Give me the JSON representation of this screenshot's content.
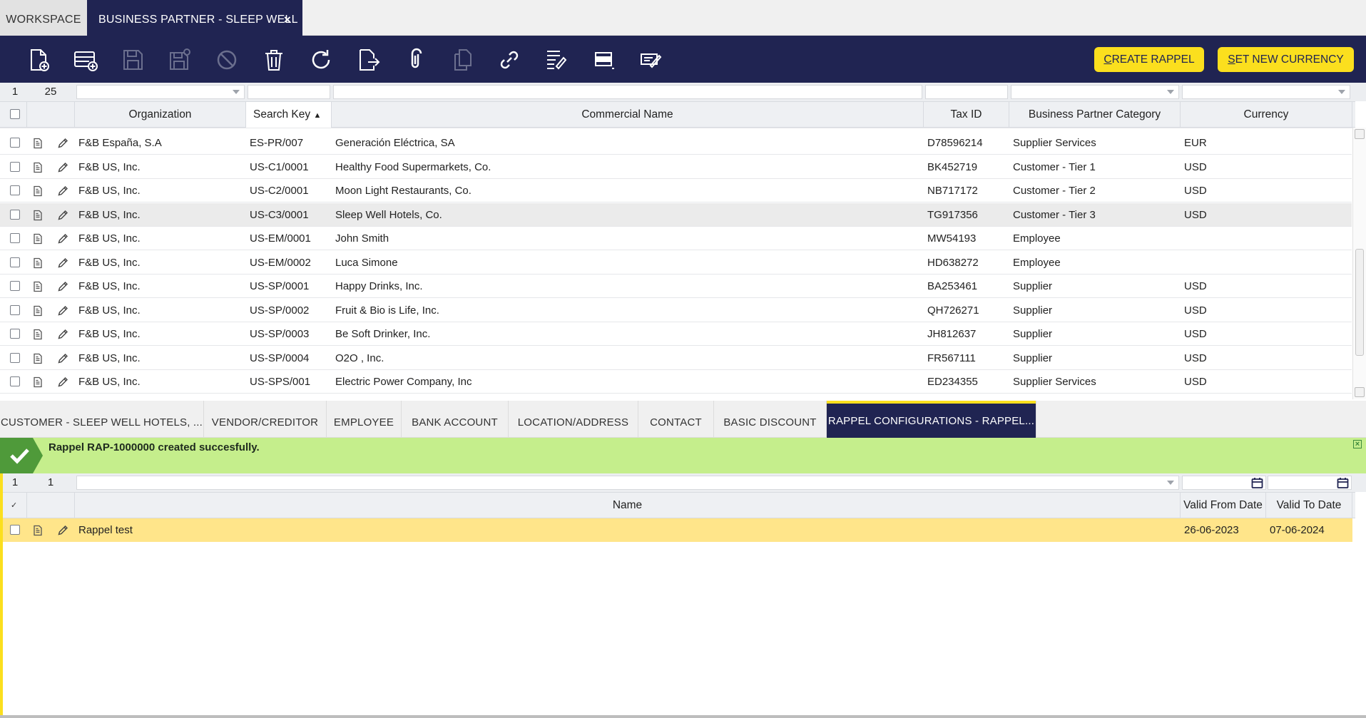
{
  "tabs": {
    "workspace": "WORKSPACE",
    "active": "BUSINESS PARTNER - SLEEP WELL ...",
    "close": "×"
  },
  "toolbar": {
    "icons": [
      "new-document-icon",
      "new-row-icon",
      "save-icon",
      "save-close-icon",
      "undo-icon",
      "delete-icon",
      "refresh-icon",
      "export-icon",
      "attachment-icon",
      "copy-record-icon",
      "link-icon",
      "audit-trail-icon",
      "form-view-icon",
      "notes-icon"
    ],
    "create_rappel": {
      "accel": "C",
      "rest": "REATE RAPPEL"
    },
    "set_currency": {
      "accel": "S",
      "rest": "ET NEW CURRENCY"
    },
    "accent": "#fbdf1e",
    "brand": "#202452"
  },
  "grid": {
    "selected_count": "1",
    "total_count": "25",
    "columns": [
      "Organization",
      "Search Key",
      "Commercial Name",
      "Tax ID",
      "Business Partner Category",
      "Currency"
    ],
    "sort_indicator": "▲",
    "rows": [
      {
        "org": "F&B España, S.A",
        "key": "ES-PR/007",
        "name": "Generación Eléctrica, SA",
        "tax": "D78596214",
        "cat": "Supplier Services",
        "cur": "EUR"
      },
      {
        "org": "F&B US, Inc.",
        "key": "US-C1/0001",
        "name": "Healthy Food Supermarkets, Co.",
        "tax": "BK452719",
        "cat": "Customer - Tier 1",
        "cur": "USD"
      },
      {
        "org": "F&B US, Inc.",
        "key": "US-C2/0001",
        "name": "Moon Light Restaurants, Co.",
        "tax": "NB717172",
        "cat": "Customer - Tier 2",
        "cur": "USD"
      },
      {
        "org": "F&B US, Inc.",
        "key": "US-C3/0001",
        "name": "Sleep Well Hotels, Co.",
        "tax": "TG917356",
        "cat": "Customer - Tier 3",
        "cur": "USD",
        "selected": true
      },
      {
        "org": "F&B US, Inc.",
        "key": "US-EM/0001",
        "name": "John Smith",
        "tax": "MW54193",
        "cat": "Employee",
        "cur": ""
      },
      {
        "org": "F&B US, Inc.",
        "key": "US-EM/0002",
        "name": "Luca Simone",
        "tax": "HD638272",
        "cat": "Employee",
        "cur": ""
      },
      {
        "org": "F&B US, Inc.",
        "key": "US-SP/0001",
        "name": "Happy Drinks, Inc.",
        "tax": "BA253461",
        "cat": "Supplier",
        "cur": "USD"
      },
      {
        "org": "F&B US, Inc.",
        "key": "US-SP/0002",
        "name": "Fruit & Bio is Life, Inc.",
        "tax": "QH726271",
        "cat": "Supplier",
        "cur": "USD"
      },
      {
        "org": "F&B US, Inc.",
        "key": "US-SP/0003",
        "name": "Be Soft Drinker, Inc.",
        "tax": "JH812637",
        "cat": "Supplier",
        "cur": "USD"
      },
      {
        "org": "F&B US, Inc.",
        "key": "US-SP/0004",
        "name": "O2O , Inc.",
        "tax": "FR567111",
        "cat": "Supplier",
        "cur": "USD"
      },
      {
        "org": "F&B US, Inc.",
        "key": "US-SPS/001",
        "name": "Electric Power Company, Inc",
        "tax": "ED234355",
        "cat": "Supplier Services",
        "cur": "USD"
      }
    ]
  },
  "subtabs": [
    "CUSTOMER - SLEEP WELL HOTELS, ...",
    "VENDOR/CREDITOR",
    "EMPLOYEE",
    "BANK ACCOUNT",
    "LOCATION/ADDRESS",
    "CONTACT",
    "BASIC DISCOUNT",
    "RAPPEL CONFIGURATIONS - RAPPEL..."
  ],
  "message": {
    "text": "Rappel RAP-1000000 created succesfully.",
    "close": "×",
    "color": "#c5ee8c"
  },
  "subgrid": {
    "selected_count": "1",
    "total_count": "1",
    "columns": [
      "Name",
      "Valid From Date",
      "Valid To Date"
    ],
    "rows": [
      {
        "name": "Rappel test",
        "from": "26-06-2023",
        "to": "07-06-2024"
      }
    ]
  }
}
